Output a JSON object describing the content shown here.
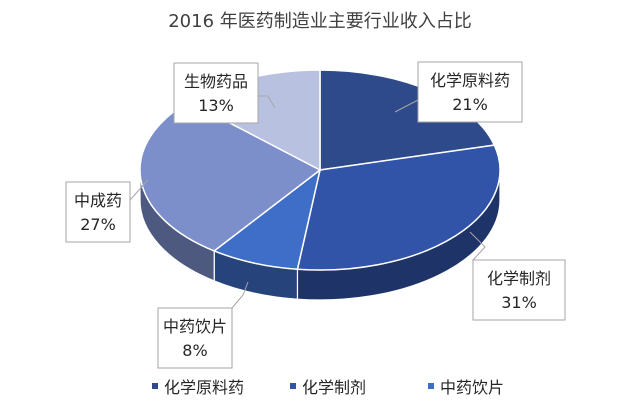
{
  "chart_data": {
    "type": "pie",
    "title": "2016 年医药制造业主要行业收入占比",
    "slices": [
      {
        "name": "化学原料药",
        "value": 21,
        "label": "21%",
        "color": "#2e4a8a"
      },
      {
        "name": "化学制剂",
        "value": 31,
        "label": "31%",
        "color": "#3153a8"
      },
      {
        "name": "中药饮片",
        "value": 8,
        "label": "8%",
        "color": "#3e6ec7"
      },
      {
        "name": "中成药",
        "value": 27,
        "label": "27%",
        "color": "#7c8fcb"
      },
      {
        "name": "生物药品",
        "value": 13,
        "label": "13%",
        "color": "#b9c1e1"
      }
    ],
    "legend": [
      "化学原料药",
      "化学制剂",
      "中药饮片"
    ],
    "legend_position": "bottom",
    "style": "3d"
  }
}
